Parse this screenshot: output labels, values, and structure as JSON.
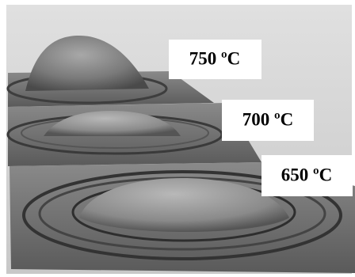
{
  "labels": [
    {
      "text": "750 ºC"
    },
    {
      "text": "700 ºC"
    },
    {
      "text": "650 ºC"
    }
  ]
}
